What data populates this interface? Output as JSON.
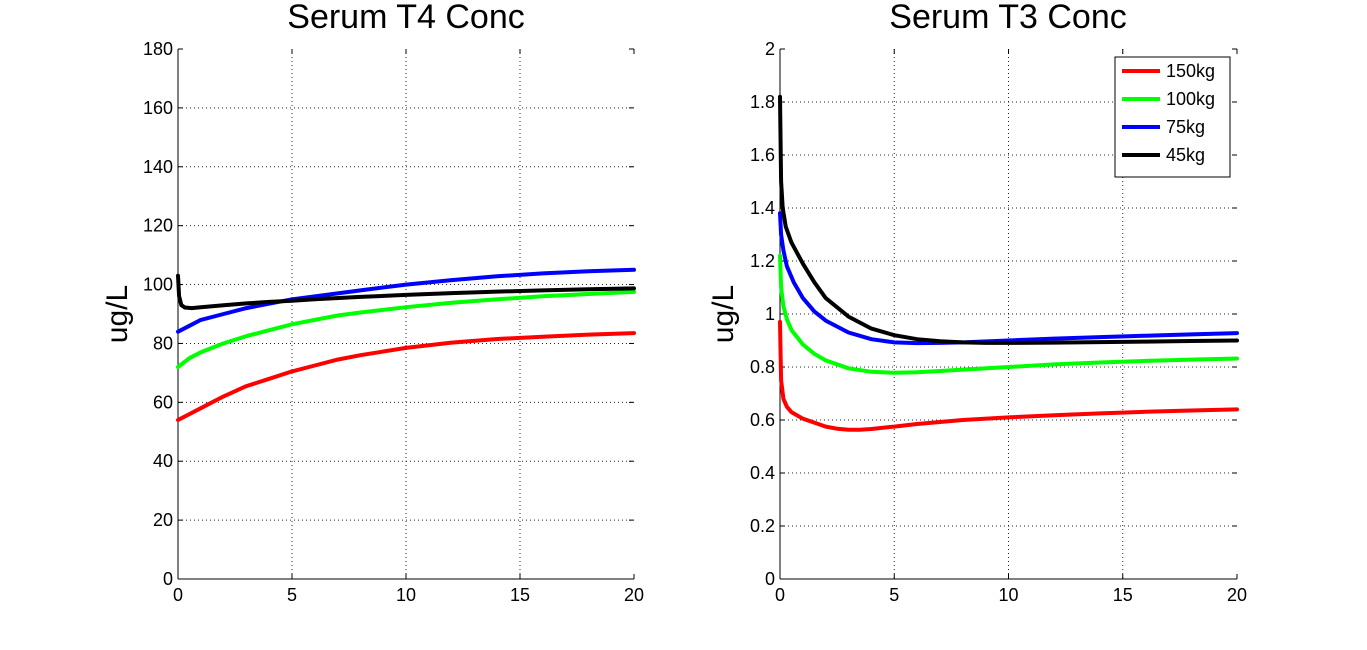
{
  "chart_data": [
    {
      "type": "line",
      "title": "Serum T4 Conc",
      "xlabel": "",
      "ylabel": "ug/L",
      "xlim": [
        0,
        20
      ],
      "ylim": [
        0,
        180
      ],
      "xticks": [
        0,
        5,
        10,
        15,
        20
      ],
      "yticks": [
        0,
        20,
        40,
        60,
        80,
        100,
        120,
        140,
        160,
        180
      ],
      "grid": true,
      "series": [
        {
          "color": "#ff0000",
          "x": [
            0,
            0.5,
            1,
            2,
            3,
            4,
            5,
            6,
            7,
            8,
            10,
            12,
            14,
            16,
            18,
            20
          ],
          "y": [
            54,
            56,
            58,
            62,
            65.5,
            68,
            70.5,
            72.5,
            74.5,
            76,
            78.5,
            80.3,
            81.5,
            82.3,
            83,
            83.5
          ]
        },
        {
          "color": "#00ff00",
          "x": [
            0,
            0.5,
            1,
            2,
            3,
            4,
            5,
            6,
            7,
            8,
            10,
            12,
            14,
            16,
            18,
            20
          ],
          "y": [
            72,
            75,
            77,
            80,
            82.5,
            84.5,
            86.5,
            88,
            89.5,
            90.5,
            92.3,
            93.8,
            95,
            96,
            96.8,
            97.5
          ]
        },
        {
          "color": "#0000ff",
          "x": [
            0,
            0.5,
            1,
            2,
            3,
            4,
            5,
            6,
            7,
            8,
            10,
            12,
            14,
            16,
            18,
            20
          ],
          "y": [
            84,
            86,
            88,
            90,
            92,
            93.5,
            95,
            96,
            97,
            98,
            100,
            101.5,
            102.8,
            103.8,
            104.5,
            105
          ]
        },
        {
          "color": "#000000",
          "x": [
            0,
            0.05,
            0.15,
            0.3,
            0.6,
            1,
            2,
            3,
            4,
            5,
            6,
            8,
            10,
            12,
            14,
            16,
            18,
            20
          ],
          "y": [
            103,
            96,
            93,
            92.2,
            92,
            92.3,
            93,
            93.6,
            94.1,
            94.5,
            95,
            95.8,
            96.5,
            97.1,
            97.6,
            98,
            98.4,
            98.7
          ]
        }
      ]
    },
    {
      "type": "line",
      "title": "Serum T3 Conc",
      "xlabel": "",
      "ylabel": "ug/L",
      "xlim": [
        0,
        20
      ],
      "ylim": [
        0,
        2
      ],
      "xticks": [
        0,
        5,
        10,
        15,
        20
      ],
      "yticks": [
        "0",
        "0.2",
        "0.4",
        "0.6",
        "0.8",
        "1",
        "1.2",
        "1.4",
        "1.6",
        "1.8",
        "2"
      ],
      "grid": true,
      "legend": "top-right",
      "series": [
        {
          "name": "150kg",
          "color": "#ff0000",
          "x": [
            0,
            0.05,
            0.15,
            0.3,
            0.5,
            1,
            1.5,
            2,
            2.5,
            3,
            3.5,
            4,
            5,
            6,
            8,
            10,
            12,
            14,
            16,
            18,
            20
          ],
          "y": [
            0.97,
            0.75,
            0.68,
            0.65,
            0.63,
            0.605,
            0.59,
            0.575,
            0.567,
            0.563,
            0.563,
            0.566,
            0.575,
            0.585,
            0.6,
            0.61,
            0.618,
            0.625,
            0.631,
            0.636,
            0.64
          ]
        },
        {
          "name": "100kg",
          "color": "#00ff00",
          "x": [
            0,
            0.05,
            0.15,
            0.3,
            0.5,
            1,
            1.5,
            2,
            3,
            4,
            5,
            6,
            7,
            8,
            10,
            12,
            14,
            16,
            18,
            20
          ],
          "y": [
            1.22,
            1.1,
            1.03,
            0.98,
            0.94,
            0.885,
            0.85,
            0.825,
            0.795,
            0.782,
            0.778,
            0.78,
            0.785,
            0.79,
            0.8,
            0.81,
            0.817,
            0.823,
            0.828,
            0.832
          ]
        },
        {
          "name": "75kg",
          "color": "#0000ff",
          "x": [
            0,
            0.05,
            0.15,
            0.3,
            0.6,
            1,
            1.5,
            2,
            3,
            4,
            5,
            6,
            7,
            8,
            10,
            12,
            14,
            16,
            18,
            20
          ],
          "y": [
            1.38,
            1.3,
            1.24,
            1.18,
            1.12,
            1.06,
            1.01,
            0.975,
            0.93,
            0.905,
            0.893,
            0.89,
            0.891,
            0.893,
            0.9,
            0.907,
            0.913,
            0.918,
            0.923,
            0.928
          ]
        },
        {
          "name": "45kg",
          "color": "#000000",
          "x": [
            0,
            0.05,
            0.12,
            0.25,
            0.5,
            1,
            1.5,
            2,
            3,
            4,
            5,
            6,
            7,
            8,
            9,
            10,
            12,
            14,
            16,
            18,
            20
          ],
          "y": [
            1.82,
            1.5,
            1.4,
            1.33,
            1.27,
            1.19,
            1.12,
            1.06,
            0.99,
            0.945,
            0.92,
            0.905,
            0.897,
            0.893,
            0.891,
            0.891,
            0.892,
            0.894,
            0.896,
            0.898,
            0.9
          ]
        }
      ]
    }
  ]
}
